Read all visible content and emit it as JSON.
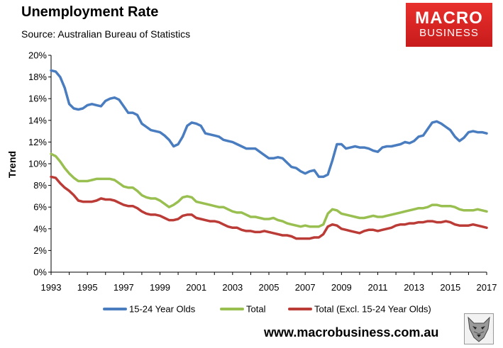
{
  "header": {
    "title": "Unemployment Rate",
    "subtitle": "Source: Australian Bureau of Statistics"
  },
  "logo": {
    "line1": "MACRO",
    "line2": "BUSINESS"
  },
  "footer": {
    "website": "www.macrobusiness.com.au"
  },
  "colors": {
    "youth": "#4a7dbf",
    "total": "#98bf50",
    "excl": "#bb3b37",
    "axis": "#000000",
    "logo_bg": "#d62525"
  },
  "chart_data": {
    "type": "line",
    "title": "Unemployment Rate",
    "xlabel": "",
    "ylabel": "Trend",
    "xlim": [
      1993,
      2017
    ],
    "ylim": [
      0,
      20
    ],
    "x_ticks": [
      1993,
      1995,
      1997,
      1999,
      2001,
      2003,
      2005,
      2007,
      2009,
      2011,
      2013,
      2015,
      2017
    ],
    "y_ticks": [
      0,
      2,
      4,
      6,
      8,
      10,
      12,
      14,
      16,
      18,
      20
    ],
    "y_tick_suffix": "%",
    "grid": false,
    "legend_position": "bottom",
    "series": [
      {
        "name": "15-24 Year Olds",
        "color": "#4a7dbf",
        "x": [
          1993.0,
          1993.25,
          1993.5,
          1993.75,
          1994.0,
          1994.25,
          1994.5,
          1994.75,
          1995.0,
          1995.25,
          1995.5,
          1995.75,
          1996.0,
          1996.25,
          1996.5,
          1996.75,
          1997.0,
          1997.25,
          1997.5,
          1997.75,
          1998.0,
          1998.25,
          1998.5,
          1998.75,
          1999.0,
          1999.25,
          1999.5,
          1999.75,
          2000.0,
          2000.25,
          2000.5,
          2000.75,
          2001.0,
          2001.25,
          2001.5,
          2001.75,
          2002.0,
          2002.25,
          2002.5,
          2002.75,
          2003.0,
          2003.25,
          2003.5,
          2003.75,
          2004.0,
          2004.25,
          2004.5,
          2004.75,
          2005.0,
          2005.25,
          2005.5,
          2005.75,
          2006.0,
          2006.25,
          2006.5,
          2006.75,
          2007.0,
          2007.25,
          2007.5,
          2007.75,
          2008.0,
          2008.25,
          2008.5,
          2008.75,
          2009.0,
          2009.25,
          2009.5,
          2009.75,
          2010.0,
          2010.25,
          2010.5,
          2010.75,
          2011.0,
          2011.25,
          2011.5,
          2011.75,
          2012.0,
          2012.25,
          2012.5,
          2012.75,
          2013.0,
          2013.25,
          2013.5,
          2013.75,
          2014.0,
          2014.25,
          2014.5,
          2014.75,
          2015.0,
          2015.25,
          2015.5,
          2015.75,
          2016.0,
          2016.25,
          2016.5,
          2016.75,
          2017.0
        ],
        "values": [
          18.6,
          18.5,
          18.0,
          17.0,
          15.5,
          15.1,
          15.0,
          15.1,
          15.4,
          15.5,
          15.4,
          15.3,
          15.8,
          16.0,
          16.1,
          15.9,
          15.3,
          14.7,
          14.7,
          14.5,
          13.7,
          13.4,
          13.1,
          13.0,
          12.9,
          12.6,
          12.2,
          11.6,
          11.8,
          12.5,
          13.5,
          13.8,
          13.7,
          13.5,
          12.8,
          12.7,
          12.6,
          12.5,
          12.2,
          12.1,
          12.0,
          11.8,
          11.6,
          11.4,
          11.4,
          11.4,
          11.1,
          10.8,
          10.5,
          10.5,
          10.6,
          10.5,
          10.1,
          9.7,
          9.6,
          9.3,
          9.1,
          9.3,
          9.4,
          8.8,
          8.8,
          9.0,
          10.3,
          11.8,
          11.8,
          11.4,
          11.5,
          11.6,
          11.5,
          11.5,
          11.4,
          11.2,
          11.1,
          11.5,
          11.6,
          11.6,
          11.7,
          11.8,
          12.0,
          11.9,
          12.1,
          12.5,
          12.6,
          13.2,
          13.8,
          13.9,
          13.7,
          13.4,
          13.1,
          12.5,
          12.1,
          12.4,
          12.9,
          13.0,
          12.9,
          12.9,
          12.8
        ]
      },
      {
        "name": "Total",
        "color": "#98bf50",
        "x": [
          1993.0,
          1993.25,
          1993.5,
          1993.75,
          1994.0,
          1994.25,
          1994.5,
          1994.75,
          1995.0,
          1995.25,
          1995.5,
          1995.75,
          1996.0,
          1996.25,
          1996.5,
          1996.75,
          1997.0,
          1997.25,
          1997.5,
          1997.75,
          1998.0,
          1998.25,
          1998.5,
          1998.75,
          1999.0,
          1999.25,
          1999.5,
          1999.75,
          2000.0,
          2000.25,
          2000.5,
          2000.75,
          2001.0,
          2001.25,
          2001.5,
          2001.75,
          2002.0,
          2002.25,
          2002.5,
          2002.75,
          2003.0,
          2003.25,
          2003.5,
          2003.75,
          2004.0,
          2004.25,
          2004.5,
          2004.75,
          2005.0,
          2005.25,
          2005.5,
          2005.75,
          2006.0,
          2006.25,
          2006.5,
          2006.75,
          2007.0,
          2007.25,
          2007.5,
          2007.75,
          2008.0,
          2008.25,
          2008.5,
          2008.75,
          2009.0,
          2009.25,
          2009.5,
          2009.75,
          2010.0,
          2010.25,
          2010.5,
          2010.75,
          2011.0,
          2011.25,
          2011.5,
          2011.75,
          2012.0,
          2012.25,
          2012.5,
          2012.75,
          2013.0,
          2013.25,
          2013.5,
          2013.75,
          2014.0,
          2014.25,
          2014.5,
          2014.75,
          2015.0,
          2015.25,
          2015.5,
          2015.75,
          2016.0,
          2016.25,
          2016.5,
          2016.75,
          2017.0
        ],
        "values": [
          10.9,
          10.7,
          10.2,
          9.6,
          9.1,
          8.7,
          8.4,
          8.4,
          8.4,
          8.5,
          8.6,
          8.6,
          8.6,
          8.6,
          8.5,
          8.2,
          7.9,
          7.8,
          7.8,
          7.5,
          7.1,
          6.9,
          6.8,
          6.8,
          6.6,
          6.3,
          6.0,
          6.2,
          6.5,
          6.9,
          7.0,
          6.9,
          6.5,
          6.4,
          6.3,
          6.2,
          6.1,
          6.0,
          6.0,
          5.8,
          5.6,
          5.5,
          5.5,
          5.3,
          5.1,
          5.1,
          5.0,
          4.9,
          4.9,
          5.0,
          4.8,
          4.7,
          4.5,
          4.4,
          4.3,
          4.2,
          4.3,
          4.2,
          4.2,
          4.2,
          4.4,
          5.4,
          5.8,
          5.7,
          5.4,
          5.3,
          5.2,
          5.1,
          5.0,
          5.0,
          5.1,
          5.2,
          5.1,
          5.1,
          5.2,
          5.3,
          5.4,
          5.5,
          5.6,
          5.7,
          5.8,
          5.9,
          5.9,
          6.0,
          6.2,
          6.2,
          6.1,
          6.1,
          6.1,
          6.0,
          5.8,
          5.7,
          5.7,
          5.7,
          5.8,
          5.7,
          5.6
        ]
      },
      {
        "name": "Total (Excl. 15-24 Year Olds)",
        "color": "#bb3b37",
        "x": [
          1993.0,
          1993.25,
          1993.5,
          1993.75,
          1994.0,
          1994.25,
          1994.5,
          1994.75,
          1995.0,
          1995.25,
          1995.5,
          1995.75,
          1996.0,
          1996.25,
          1996.5,
          1996.75,
          1997.0,
          1997.25,
          1997.5,
          1997.75,
          1998.0,
          1998.25,
          1998.5,
          1998.75,
          1999.0,
          1999.25,
          1999.5,
          1999.75,
          2000.0,
          2000.25,
          2000.5,
          2000.75,
          2001.0,
          2001.25,
          2001.5,
          2001.75,
          2002.0,
          2002.25,
          2002.5,
          2002.75,
          2003.0,
          2003.25,
          2003.5,
          2003.75,
          2004.0,
          2004.25,
          2004.5,
          2004.75,
          2005.0,
          2005.25,
          2005.5,
          2005.75,
          2006.0,
          2006.25,
          2006.5,
          2006.75,
          2007.0,
          2007.25,
          2007.5,
          2007.75,
          2008.0,
          2008.25,
          2008.5,
          2008.75,
          2009.0,
          2009.25,
          2009.5,
          2009.75,
          2010.0,
          2010.25,
          2010.5,
          2010.75,
          2011.0,
          2011.25,
          2011.5,
          2011.75,
          2012.0,
          2012.25,
          2012.5,
          2012.75,
          2013.0,
          2013.25,
          2013.5,
          2013.75,
          2014.0,
          2014.25,
          2014.5,
          2014.75,
          2015.0,
          2015.25,
          2015.5,
          2015.75,
          2016.0,
          2016.25,
          2016.5,
          2016.75,
          2017.0
        ],
        "values": [
          8.8,
          8.7,
          8.2,
          7.8,
          7.5,
          7.1,
          6.6,
          6.5,
          6.5,
          6.5,
          6.6,
          6.8,
          6.7,
          6.7,
          6.6,
          6.4,
          6.2,
          6.1,
          6.1,
          5.9,
          5.6,
          5.4,
          5.3,
          5.3,
          5.2,
          5.0,
          4.8,
          4.8,
          4.9,
          5.2,
          5.3,
          5.3,
          5.0,
          4.9,
          4.8,
          4.7,
          4.7,
          4.6,
          4.4,
          4.2,
          4.1,
          4.1,
          3.9,
          3.8,
          3.8,
          3.7,
          3.7,
          3.8,
          3.7,
          3.6,
          3.5,
          3.4,
          3.4,
          3.3,
          3.1,
          3.1,
          3.1,
          3.1,
          3.2,
          3.2,
          3.5,
          4.2,
          4.4,
          4.3,
          4.0,
          3.9,
          3.8,
          3.7,
          3.6,
          3.8,
          3.9,
          3.9,
          3.8,
          3.9,
          4.0,
          4.1,
          4.3,
          4.4,
          4.4,
          4.5,
          4.5,
          4.6,
          4.6,
          4.7,
          4.7,
          4.6,
          4.6,
          4.7,
          4.6,
          4.4,
          4.3,
          4.3,
          4.3,
          4.4,
          4.3,
          4.2,
          4.1
        ]
      }
    ]
  }
}
